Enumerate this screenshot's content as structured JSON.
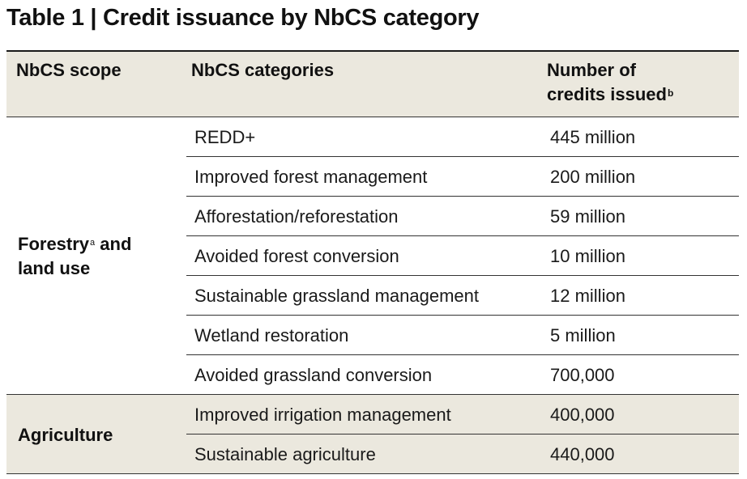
{
  "title": "Table 1 | Credit issuance by NbCS category",
  "header": {
    "scope": "NbCS scope",
    "categories": "NbCS categories",
    "number_line1": "Number of",
    "number_line2": "credits issued",
    "number_footnote": "b"
  },
  "groups": [
    {
      "scope_line1": "Forestry",
      "scope_footnote": "a",
      "scope_line1_rest": " and",
      "scope_line2": "land use",
      "rows": [
        {
          "category": "REDD+",
          "credits": "445 million"
        },
        {
          "category": "Improved forest management",
          "credits": "200 million"
        },
        {
          "category": "Afforestation/reforestation",
          "credits": "59 million"
        },
        {
          "category": "Avoided forest conversion",
          "credits": "10 million"
        },
        {
          "category": "Sustainable grassland management",
          "credits": "12 million"
        },
        {
          "category": "Wetland restoration",
          "credits": "5 million"
        },
        {
          "category": "Avoided grassland conversion",
          "credits": "700,000"
        }
      ]
    },
    {
      "scope_line1": "Agriculture",
      "rows": [
        {
          "category": "Improved irrigation management",
          "credits": "400,000"
        },
        {
          "category": "Sustainable agriculture",
          "credits": "440,000"
        }
      ]
    }
  ]
}
